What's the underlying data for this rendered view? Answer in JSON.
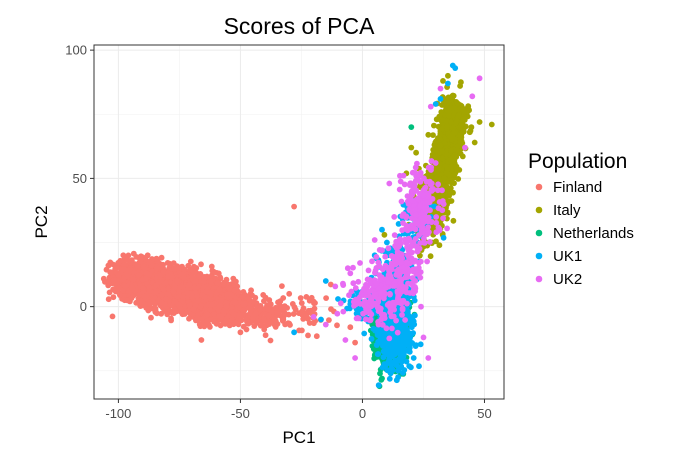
{
  "chart_data": {
    "type": "scatter",
    "title": "Scores of PCA",
    "xlabel": "PC1",
    "ylabel": "PC2",
    "xlim": [
      -110,
      58
    ],
    "ylim": [
      -36,
      102
    ],
    "xticks": [
      -100,
      -50,
      0,
      50
    ],
    "yticks": [
      0,
      50,
      100
    ],
    "grid": true,
    "legend_title": "Population",
    "legend_position": "right",
    "series": [
      {
        "name": "Finland",
        "color": "#F8766D",
        "clusters": [
          {
            "n": 1300,
            "cx": -90,
            "cy": 11,
            "sx": 5.5,
            "sy": 3.2
          },
          {
            "n": 1800,
            "cx": -75,
            "cy": 6,
            "sx": 7,
            "sy": 3.5
          },
          {
            "n": 900,
            "cx": -58,
            "cy": 1,
            "sx": 5.5,
            "sy": 3.2
          },
          {
            "n": 150,
            "cx": -40,
            "cy": -3,
            "sx": 6,
            "sy": 3
          },
          {
            "n": 40,
            "cx": -22,
            "cy": -2,
            "sx": 6,
            "sy": 4
          }
        ],
        "points": [
          [
            -28,
            39
          ],
          [
            -98,
            20
          ],
          [
            -104,
            16
          ],
          [
            -100,
            17
          ],
          [
            -50,
            -10
          ],
          [
            -66,
            -13
          ],
          [
            -33,
            8
          ],
          [
            -20,
            2
          ],
          [
            -5,
            -8
          ],
          [
            -3,
            -14
          ],
          [
            -36,
            -5
          ],
          [
            -30,
            5
          ],
          [
            -80,
            -3
          ],
          [
            -87,
            1
          ]
        ]
      },
      {
        "name": "Italy",
        "color": "#A3A500",
        "clusters": [
          {
            "n": 500,
            "cx": 30,
            "cy": 44,
            "sx": 2.3,
            "sy": 4
          },
          {
            "n": 450,
            "cx": 34,
            "cy": 58,
            "sx": 2.5,
            "sy": 5
          },
          {
            "n": 350,
            "cx": 37,
            "cy": 72,
            "sx": 2.6,
            "sy": 5
          },
          {
            "n": 150,
            "cx": 26,
            "cy": 33,
            "sx": 3,
            "sy": 5
          }
        ],
        "points": [
          [
            48,
            72
          ],
          [
            53,
            71
          ],
          [
            44,
            68
          ],
          [
            46,
            64
          ],
          [
            22,
            60
          ],
          [
            20,
            62
          ],
          [
            21,
            43
          ],
          [
            19,
            32
          ],
          [
            14,
            25
          ],
          [
            9,
            28
          ],
          [
            35,
            90
          ],
          [
            33,
            88
          ],
          [
            40,
            86
          ],
          [
            26,
            55
          ],
          [
            24,
            48
          ],
          [
            43,
            76
          ],
          [
            18,
            52
          ],
          [
            27,
            67
          ]
        ]
      },
      {
        "name": "Netherlands",
        "color": "#00BF7D",
        "clusters": [
          {
            "n": 1400,
            "cx": 11,
            "cy": -11,
            "sx": 2.6,
            "sy": 5.5
          },
          {
            "n": 450,
            "cx": 13,
            "cy": 3,
            "sx": 2.5,
            "sy": 3.5
          }
        ],
        "points": [
          [
            8,
            -28
          ],
          [
            7,
            -31
          ],
          [
            20,
            70
          ],
          [
            4,
            -7
          ],
          [
            17,
            10
          ],
          [
            10,
            -24
          ],
          [
            16,
            18
          ],
          [
            22,
            30
          ]
        ]
      },
      {
        "name": "UK1",
        "color": "#00B0F6",
        "clusters": [
          {
            "n": 700,
            "cx": 13,
            "cy": -8,
            "sx": 3.5,
            "sy": 7
          },
          {
            "n": 250,
            "cx": 14,
            "cy": 12,
            "sx": 3.5,
            "sy": 6
          },
          {
            "n": 90,
            "cx": 22,
            "cy": 33,
            "sx": 3,
            "sy": 4
          },
          {
            "n": 60,
            "cx": 1,
            "cy": 0,
            "sx": 4,
            "sy": 4
          }
        ],
        "points": [
          [
            37,
            94
          ],
          [
            38,
            93
          ],
          [
            -28,
            -10
          ],
          [
            -15,
            10
          ],
          [
            -10,
            3
          ],
          [
            -5,
            1
          ],
          [
            35,
            87
          ],
          [
            30,
            79
          ],
          [
            32,
            81
          ],
          [
            10,
            25
          ],
          [
            8,
            30
          ],
          [
            5,
            20
          ],
          [
            -17,
            -5
          ],
          [
            21,
            -20
          ],
          [
            22,
            -15
          ]
        ]
      },
      {
        "name": "UK2",
        "color": "#E76BF3",
        "clusters": [
          {
            "n": 200,
            "cx": 6,
            "cy": 4,
            "sx": 6,
            "sy": 6
          },
          {
            "n": 200,
            "cx": 23,
            "cy": 38,
            "sx": 4,
            "sy": 9
          },
          {
            "n": 120,
            "cx": 17,
            "cy": 15,
            "sx": 4,
            "sy": 6
          }
        ],
        "points": [
          [
            48,
            89
          ],
          [
            32,
            85
          ],
          [
            28,
            78
          ],
          [
            45,
            82
          ],
          [
            -7,
            -13
          ],
          [
            -3,
            -20
          ],
          [
            25,
            -12
          ],
          [
            24,
            0
          ],
          [
            -15,
            -7
          ],
          [
            -20,
            -4
          ],
          [
            -8,
            9
          ],
          [
            5,
            26
          ],
          [
            8,
            22
          ],
          [
            13,
            35
          ],
          [
            16,
            41
          ],
          [
            -1,
            17
          ],
          [
            27,
            -20
          ],
          [
            30,
            56
          ],
          [
            42,
            62
          ],
          [
            11,
            48
          ],
          [
            -6,
            15
          ]
        ]
      }
    ]
  }
}
